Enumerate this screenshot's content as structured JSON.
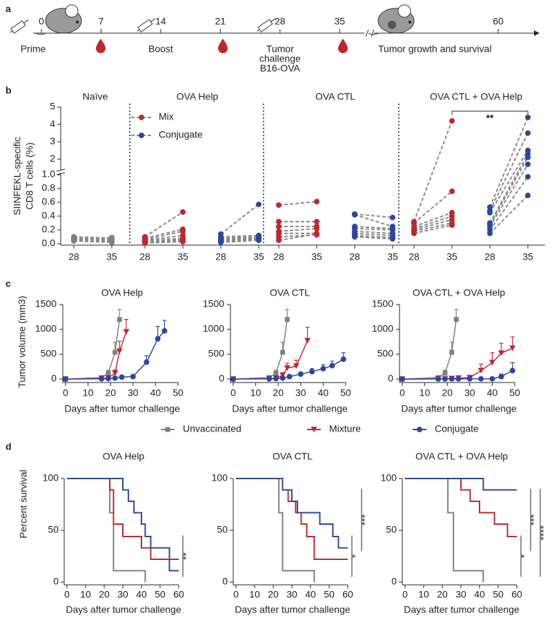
{
  "panel_labels": [
    "a",
    "b",
    "c",
    "d"
  ],
  "timeline": {
    "days": [
      0,
      7,
      14,
      21,
      28,
      35,
      60
    ],
    "labels": [
      "Prime",
      "Boost",
      [
        "Tumor",
        "challenge",
        "B16-OVA"
      ],
      "Tumor growth and survival"
    ]
  },
  "chart_data": [
    {
      "type": "paired-dot",
      "ylabel": [
        "SIINFEKL-specific",
        "CD8 T cells (%)"
      ],
      "ylim_lower": [
        0,
        1.0
      ],
      "ylim_upper": [
        1.5,
        5
      ],
      "yticks": [
        {
          "value": 0,
          "label": "0.0"
        },
        0.2,
        0.4,
        0.6,
        0.8,
        {
          "value": 1,
          "label": "1.0"
        },
        2,
        3,
        4,
        5
      ],
      "xticks": [
        28,
        35
      ],
      "annotation": "**",
      "legend": [
        {
          "name": "Mix",
          "color": "#c0272d"
        },
        {
          "name": "Conjugate",
          "color": "#2a47a0"
        }
      ],
      "groups": [
        {
          "title": "Naïve",
          "pairs": [
            {
              "color": "#7f7f7f",
              "day28": [
                0.1,
                0.09,
                0.08,
                0.07,
                0.06,
                0.05,
                0.04,
                0.06
              ],
              "day35": [
                0.08,
                0.07,
                0.06,
                0.05,
                0.04,
                0.03,
                0.02,
                0.09
              ]
            }
          ]
        },
        {
          "title": "OVA Help",
          "pairs": [
            {
              "color": "#c0272d",
              "day28": [
                0.1,
                0.08,
                0.06,
                0.05,
                0.04,
                0.03,
                0.02,
                0.01
              ],
              "day35": [
                0.46,
                0.21,
                0.18,
                0.12,
                0.08,
                0.06,
                0.05,
                0.03
              ]
            },
            {
              "color": "#2a47a0",
              "day28": [
                0.14,
                0.1,
                0.08,
                0.06,
                0.05,
                0.04,
                0.03,
                0.02
              ],
              "day35": [
                0.57,
                0.12,
                0.1,
                0.09,
                0.08,
                0.07,
                0.06,
                0.05
              ]
            }
          ]
        },
        {
          "title": "OVA CTL",
          "pairs": [
            {
              "color": "#c0272d",
              "day28": [
                0.56,
                0.32,
                0.25,
                0.18,
                0.15,
                0.1,
                0.05
              ],
              "day35": [
                0.61,
                0.32,
                0.25,
                0.22,
                0.15,
                0.13,
                0.14
              ]
            },
            {
              "color": "#2a47a0",
              "day28": [
                0.43,
                0.42,
                0.25,
                0.22,
                0.18,
                0.15,
                0.12,
                0.1
              ],
              "day35": [
                0.38,
                0.25,
                0.22,
                0.2,
                0.15,
                0.12,
                0.09,
                0.07
              ]
            }
          ]
        },
        {
          "title": "OVA CTL + OVA Help",
          "pairs": [
            {
              "color": "#c0272d",
              "day28": [
                0.32,
                0.3,
                0.25,
                0.22,
                0.2,
                0.18,
                0.15
              ],
              "day35": [
                4.2,
                0.76,
                0.45,
                0.4,
                0.35,
                0.3,
                0.27
              ]
            },
            {
              "color": "#2a47a0",
              "day28": [
                0.53,
                0.48,
                0.45,
                0.3,
                0.28,
                0.25,
                0.2,
                0.15
              ],
              "day35": [
                4.4,
                3.5,
                2.5,
                2.3,
                2.1,
                1.7,
                0.97,
                0.7
              ]
            }
          ]
        }
      ]
    },
    {
      "type": "line-error",
      "title": "OVA Help",
      "ylabel": "Tumor volume (mm3)",
      "xlabel": "Days after tumor challenge",
      "xlim": [
        0,
        50
      ],
      "xticks": [
        0,
        10,
        20,
        30,
        40,
        50
      ],
      "ylim": [
        0,
        1500
      ],
      "yticks": [
        0,
        500,
        1000,
        1500
      ],
      "series": [
        {
          "name": "Unvaccinated",
          "color": "#7f7f7f",
          "marker": "square",
          "x": [
            0,
            16,
            19,
            22,
            24
          ],
          "values": [
            0,
            30,
            120,
            540,
            1200
          ],
          "errors": [
            0,
            20,
            60,
            200,
            200
          ]
        },
        {
          "name": "Mixture",
          "color": "#c0272d",
          "marker": "triangle",
          "x": [
            0,
            16,
            19,
            22,
            24,
            27
          ],
          "values": [
            0,
            10,
            20,
            120,
            560,
            950
          ],
          "errors": [
            0,
            5,
            10,
            60,
            200,
            250
          ]
        },
        {
          "name": "Conjugate",
          "color": "#2a47a0",
          "marker": "circle",
          "x": [
            0,
            16,
            19,
            22,
            25,
            30,
            36,
            41,
            44
          ],
          "values": [
            0,
            5,
            10,
            20,
            40,
            50,
            340,
            810,
            970
          ],
          "errors": [
            0,
            3,
            5,
            10,
            20,
            20,
            130,
            250,
            210
          ]
        }
      ]
    },
    {
      "type": "line-error",
      "title": "OVA CTL",
      "xlabel": "Days after tumor challenge",
      "xlim": [
        0,
        50
      ],
      "xticks": [
        0,
        10,
        20,
        30,
        40,
        50
      ],
      "ylim": [
        0,
        1500
      ],
      "yticks": [
        0,
        500,
        1000,
        1500
      ],
      "series": [
        {
          "color": "#7f7f7f",
          "marker": "square",
          "x": [
            0,
            16,
            19,
            22,
            24
          ],
          "values": [
            0,
            30,
            120,
            540,
            1200
          ],
          "errors": [
            0,
            20,
            60,
            200,
            200
          ]
        },
        {
          "color": "#c0272d",
          "marker": "triangle",
          "x": [
            0,
            16,
            19,
            22,
            24,
            28,
            33
          ],
          "values": [
            0,
            10,
            20,
            80,
            220,
            260,
            770
          ],
          "errors": [
            0,
            5,
            10,
            40,
            100,
            120,
            270
          ]
        },
        {
          "color": "#2a47a0",
          "marker": "circle",
          "x": [
            0,
            16,
            19,
            22,
            25,
            30,
            35,
            40,
            44,
            49
          ],
          "values": [
            0,
            5,
            10,
            20,
            50,
            100,
            150,
            210,
            270,
            400
          ],
          "errors": [
            0,
            3,
            5,
            10,
            30,
            40,
            60,
            80,
            90,
            130
          ]
        }
      ]
    },
    {
      "type": "line-error",
      "title": "OVA CTL + OVA Help",
      "xlabel": "Days after tumor challenge",
      "xlim": [
        0,
        50
      ],
      "xticks": [
        0,
        10,
        20,
        30,
        40,
        50
      ],
      "ylim": [
        0,
        1500
      ],
      "yticks": [
        0,
        500,
        1000,
        1500
      ],
      "series": [
        {
          "color": "#7f7f7f",
          "marker": "square",
          "x": [
            0,
            16,
            19,
            22,
            24
          ],
          "values": [
            0,
            30,
            120,
            540,
            1200
          ],
          "errors": [
            0,
            20,
            60,
            200,
            200
          ]
        },
        {
          "color": "#c0272d",
          "marker": "triangle",
          "x": [
            0,
            16,
            19,
            22,
            25,
            30,
            35,
            40,
            44,
            49
          ],
          "values": [
            0,
            5,
            5,
            10,
            20,
            30,
            170,
            330,
            520,
            620
          ],
          "errors": [
            0,
            2,
            2,
            5,
            10,
            20,
            130,
            200,
            200,
            230
          ]
        },
        {
          "color": "#2a47a0",
          "marker": "circle",
          "x": [
            0,
            16,
            19,
            22,
            25,
            30,
            35,
            40,
            44,
            49
          ],
          "values": [
            0,
            2,
            3,
            5,
            5,
            5,
            5,
            5,
            50,
            170
          ],
          "errors": [
            0,
            1,
            1,
            2,
            2,
            2,
            3,
            5,
            50,
            160
          ]
        }
      ]
    },
    {
      "type": "survival",
      "title": "OVA Help",
      "ylabel": "Percent survival",
      "xlabel": "Days after tumor challenge",
      "xlim": [
        0,
        60
      ],
      "xticks": [
        0,
        10,
        20,
        30,
        40,
        50,
        60
      ],
      "ylim": [
        0,
        100
      ],
      "yticks": [
        0,
        50,
        100
      ],
      "annotations": [
        "**"
      ],
      "series": [
        {
          "color": "#7f7f7f",
          "x": [
            0,
            23,
            25,
            42
          ],
          "values": [
            100,
            67,
            11,
            0
          ]
        },
        {
          "color": "#c0272d",
          "x": [
            0,
            23,
            25,
            30,
            40,
            45,
            60
          ],
          "values": [
            100,
            89,
            56,
            44,
            33,
            22,
            22
          ]
        },
        {
          "color": "#2a47a0",
          "x": [
            0,
            30,
            33,
            36,
            40,
            42,
            45,
            55,
            60
          ],
          "values": [
            100,
            89,
            78,
            67,
            56,
            44,
            33,
            11,
            11
          ]
        }
      ]
    },
    {
      "type": "survival",
      "title": "OVA CTL",
      "xlabel": "Days after tumor challenge",
      "xlim": [
        0,
        60
      ],
      "xticks": [
        0,
        10,
        20,
        30,
        40,
        50,
        60
      ],
      "ylim": [
        0,
        100
      ],
      "yticks": [
        0,
        50,
        100
      ],
      "annotations": [
        "*",
        "***"
      ],
      "series": [
        {
          "color": "#7f7f7f",
          "x": [
            0,
            23,
            25,
            42
          ],
          "values": [
            100,
            67,
            11,
            0
          ]
        },
        {
          "color": "#c0272d",
          "x": [
            0,
            25,
            28,
            32,
            35,
            38,
            42,
            60
          ],
          "values": [
            100,
            89,
            78,
            67,
            56,
            44,
            22,
            22
          ]
        },
        {
          "color": "#2a47a0",
          "x": [
            0,
            25,
            30,
            33,
            45,
            52,
            55,
            60
          ],
          "values": [
            100,
            89,
            78,
            67,
            56,
            44,
            33,
            33
          ]
        }
      ]
    },
    {
      "type": "survival",
      "title": "OVA CTL + OVA Help",
      "xlabel": "Days after tumor challenge",
      "xlim": [
        0,
        60
      ],
      "xticks": [
        0,
        10,
        20,
        30,
        40,
        50,
        60
      ],
      "ylim": [
        0,
        100
      ],
      "yticks": [
        0,
        50,
        100
      ],
      "annotations": [
        "*",
        "***",
        "****"
      ],
      "series": [
        {
          "color": "#7f7f7f",
          "x": [
            0,
            23,
            26,
            42
          ],
          "values": [
            100,
            67,
            11,
            0
          ]
        },
        {
          "color": "#c0272d",
          "x": [
            0,
            30,
            35,
            40,
            48,
            55,
            60
          ],
          "values": [
            100,
            89,
            78,
            67,
            56,
            44,
            44
          ]
        },
        {
          "color": "#2a47a0",
          "x": [
            0,
            42,
            60
          ],
          "values": [
            100,
            89,
            89
          ]
        }
      ]
    }
  ]
}
